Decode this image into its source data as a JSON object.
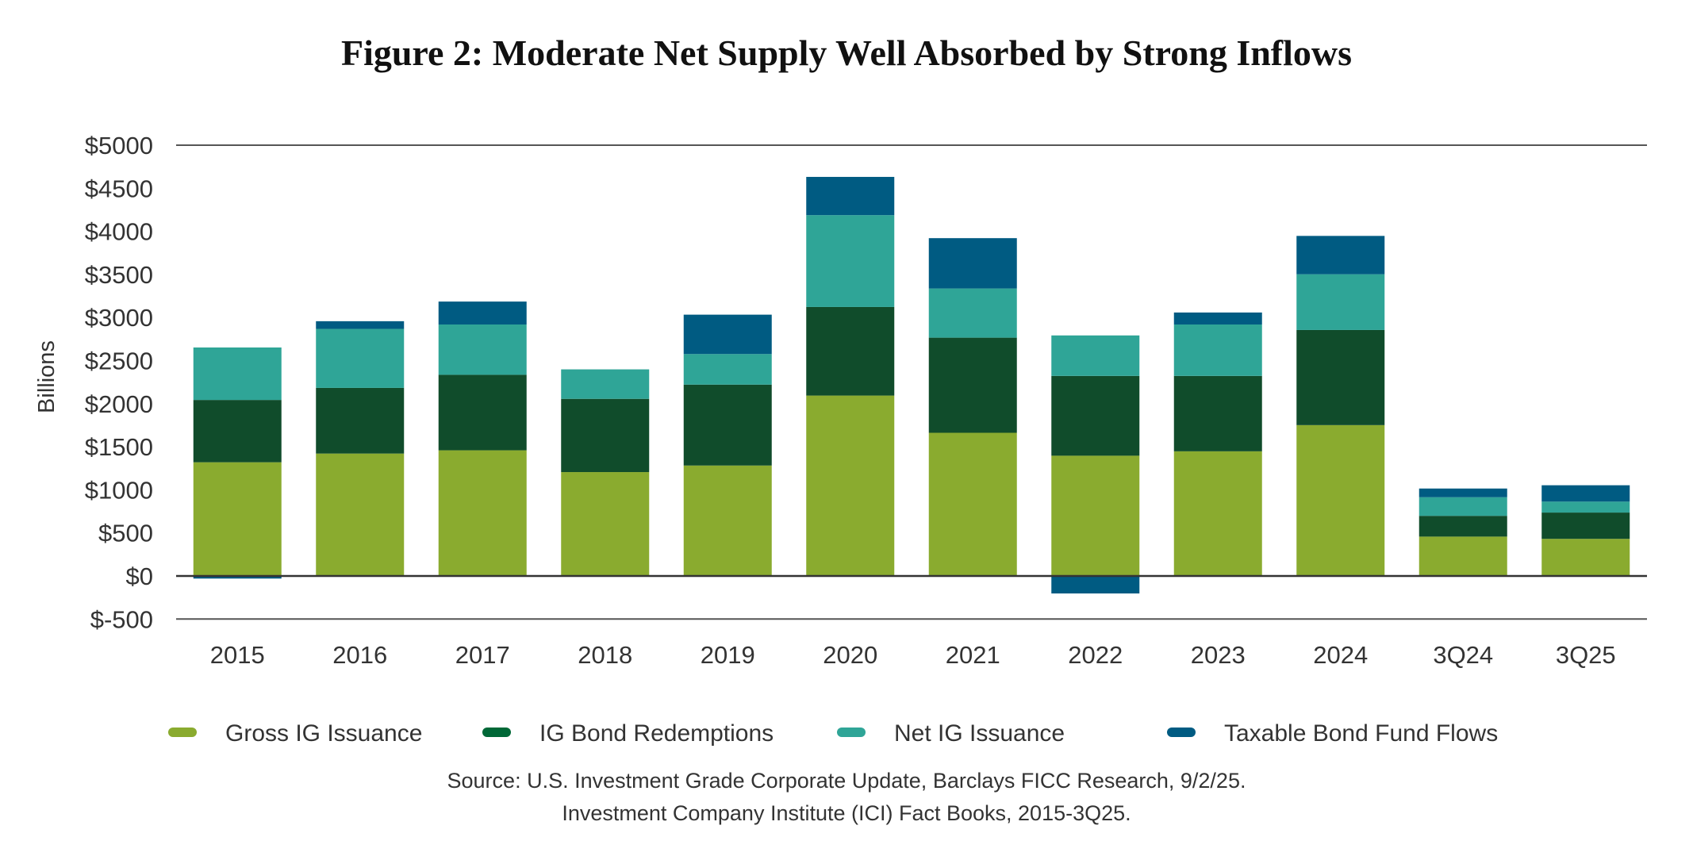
{
  "chart_data": {
    "type": "bar",
    "stacked": true,
    "title": "Figure 2: Moderate Net Supply Well Absorbed by Strong Inflows",
    "xlabel": "",
    "ylabel": "Billions",
    "ylim": [
      -500,
      5000
    ],
    "yticks": [
      -500,
      0,
      500,
      1000,
      1500,
      2000,
      2500,
      3000,
      3500,
      4000,
      4500,
      5000
    ],
    "ytick_labels": [
      "$-500",
      "$0",
      "$500",
      "$1000",
      "$1500",
      "$2000",
      "$2500",
      "$3000",
      "$3500",
      "$4000",
      "$4500",
      "$5000"
    ],
    "grid": "lines at $5000, $0 and $-500 only",
    "legend_position": "bottom",
    "categories": [
      "2015",
      "2016",
      "2017",
      "2018",
      "2019",
      "2020",
      "2021",
      "2022",
      "2023",
      "2024",
      "3Q24",
      "3Q25"
    ],
    "series": [
      {
        "name": "Gross IG Issuance",
        "color": "#8aab2f",
        "values": [
          1320,
          1421,
          1459,
          1206,
          1282,
          2094,
          1662,
          1396,
          1447,
          1751,
          457,
          431
        ]
      },
      {
        "name": "IG Bond Redemptions",
        "color": "#104c2b",
        "values": [
          723,
          762,
          876,
          850,
          939,
          1028,
          1104,
          926,
          875,
          1104,
          241,
          305
        ]
      },
      {
        "name": "Net IG Issuance",
        "color": "#2fa597",
        "values": [
          609,
          685,
          584,
          342,
          355,
          1066,
          571,
          470,
          597,
          647,
          216,
          127
        ]
      },
      {
        "name": "Taxable Bond Fund Flows",
        "color": "#005b82",
        "values": [
          -30,
          89,
          266,
          0,
          457,
          444,
          584,
          -203,
          139,
          445,
          101,
          190
        ]
      }
    ],
    "legend_colors": [
      "#8aab2f",
      "#006837",
      "#2fa597",
      "#005b82"
    ],
    "source_lines": [
      "Source: U.S. Investment Grade Corporate Update, Barclays FICC Research, 9/2/25.",
      "Investment Company Institute (ICI) Fact Books, 2015-3Q25."
    ]
  }
}
